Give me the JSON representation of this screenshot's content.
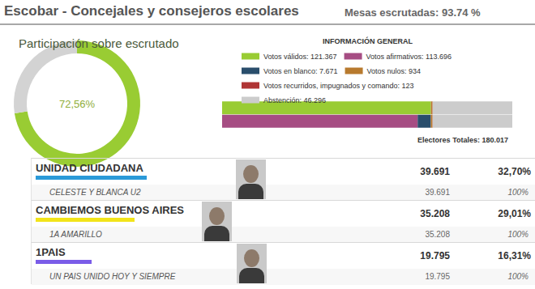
{
  "header": {
    "title": "Escobar - Concejales y consejeros escolares",
    "subtitle": "Mesas escrutadas: 93.74 %"
  },
  "chart_data": [
    {
      "type": "pie",
      "title": "Participación sobre escrutado",
      "values": [
        72.56,
        27.44
      ],
      "value_labels": [
        "72,56%",
        null
      ],
      "colors": [
        "#99cc33",
        "#d3d3d3"
      ]
    },
    {
      "type": "bar",
      "title": "INFORMACIÓN GENERAL",
      "orientation": "horizontal",
      "stacked": true,
      "legend": "top",
      "tick_labels": false,
      "categories": [
        null,
        null
      ],
      "xlim": [
        0,
        168720
      ],
      "series": [
        {
          "name": "Votos válidos: 121.367",
          "color": "#99cc33",
          "values": [
            121367,
            null
          ]
        },
        {
          "name": "Votos afirmativos: 113.696",
          "color": "#a64d83",
          "values": [
            null,
            113696
          ]
        },
        {
          "name": "Votos en blanco: 7.671",
          "color": "#2a4e6c",
          "values": [
            null,
            7671
          ]
        },
        {
          "name": "Votos nulos: 934",
          "color": "#b87a2e",
          "values": [
            934,
            934
          ]
        },
        {
          "name": "Votos recurridos, impugnados y comando: 123",
          "color": "#b03535",
          "values": [
            123,
            123
          ]
        },
        {
          "name": "Abstención: 46.296",
          "color": "#cccccc",
          "values": [
            46296,
            46296
          ]
        }
      ],
      "annotations": [
        "Electores Totales: 180.017"
      ]
    }
  ],
  "table": {
    "rows": [
      {
        "name": "UNIDAD CIUDADANA",
        "color": "#2b9ad8",
        "votes": {
          "value": 39691,
          "label": "39.691"
        },
        "percent": {
          "value": 32.7,
          "label": "32,70%"
        },
        "lists": [
          {
            "name": "CELESTE Y BLANCA U2",
            "votes": {
              "value": 39691,
              "label": "39.691"
            },
            "percent": {
              "value": 100,
              "label": "100%"
            }
          }
        ]
      },
      {
        "name": "CAMBIEMOS BUENOS AIRES",
        "color": "#f2e41a",
        "votes": {
          "value": 35208,
          "label": "35.208"
        },
        "percent": {
          "value": 29.01,
          "label": "29,01%"
        },
        "lists": [
          {
            "name": "1A AMARILLO",
            "votes": {
              "value": 35208,
              "label": "35.208"
            },
            "percent": {
              "value": 100,
              "label": "100%"
            }
          }
        ]
      },
      {
        "name": "1PAIS",
        "color": "#7a5ce8",
        "votes": {
          "value": 19795,
          "label": "19.795"
        },
        "percent": {
          "value": 16.31,
          "label": "16,31%"
        },
        "lists": [
          {
            "name": "UN PAIS UNIDO HOY Y SIEMPRE",
            "votes": {
              "value": 19795,
              "label": "19.795"
            },
            "percent": {
              "value": 100,
              "label": "100%"
            }
          }
        ]
      }
    ]
  }
}
